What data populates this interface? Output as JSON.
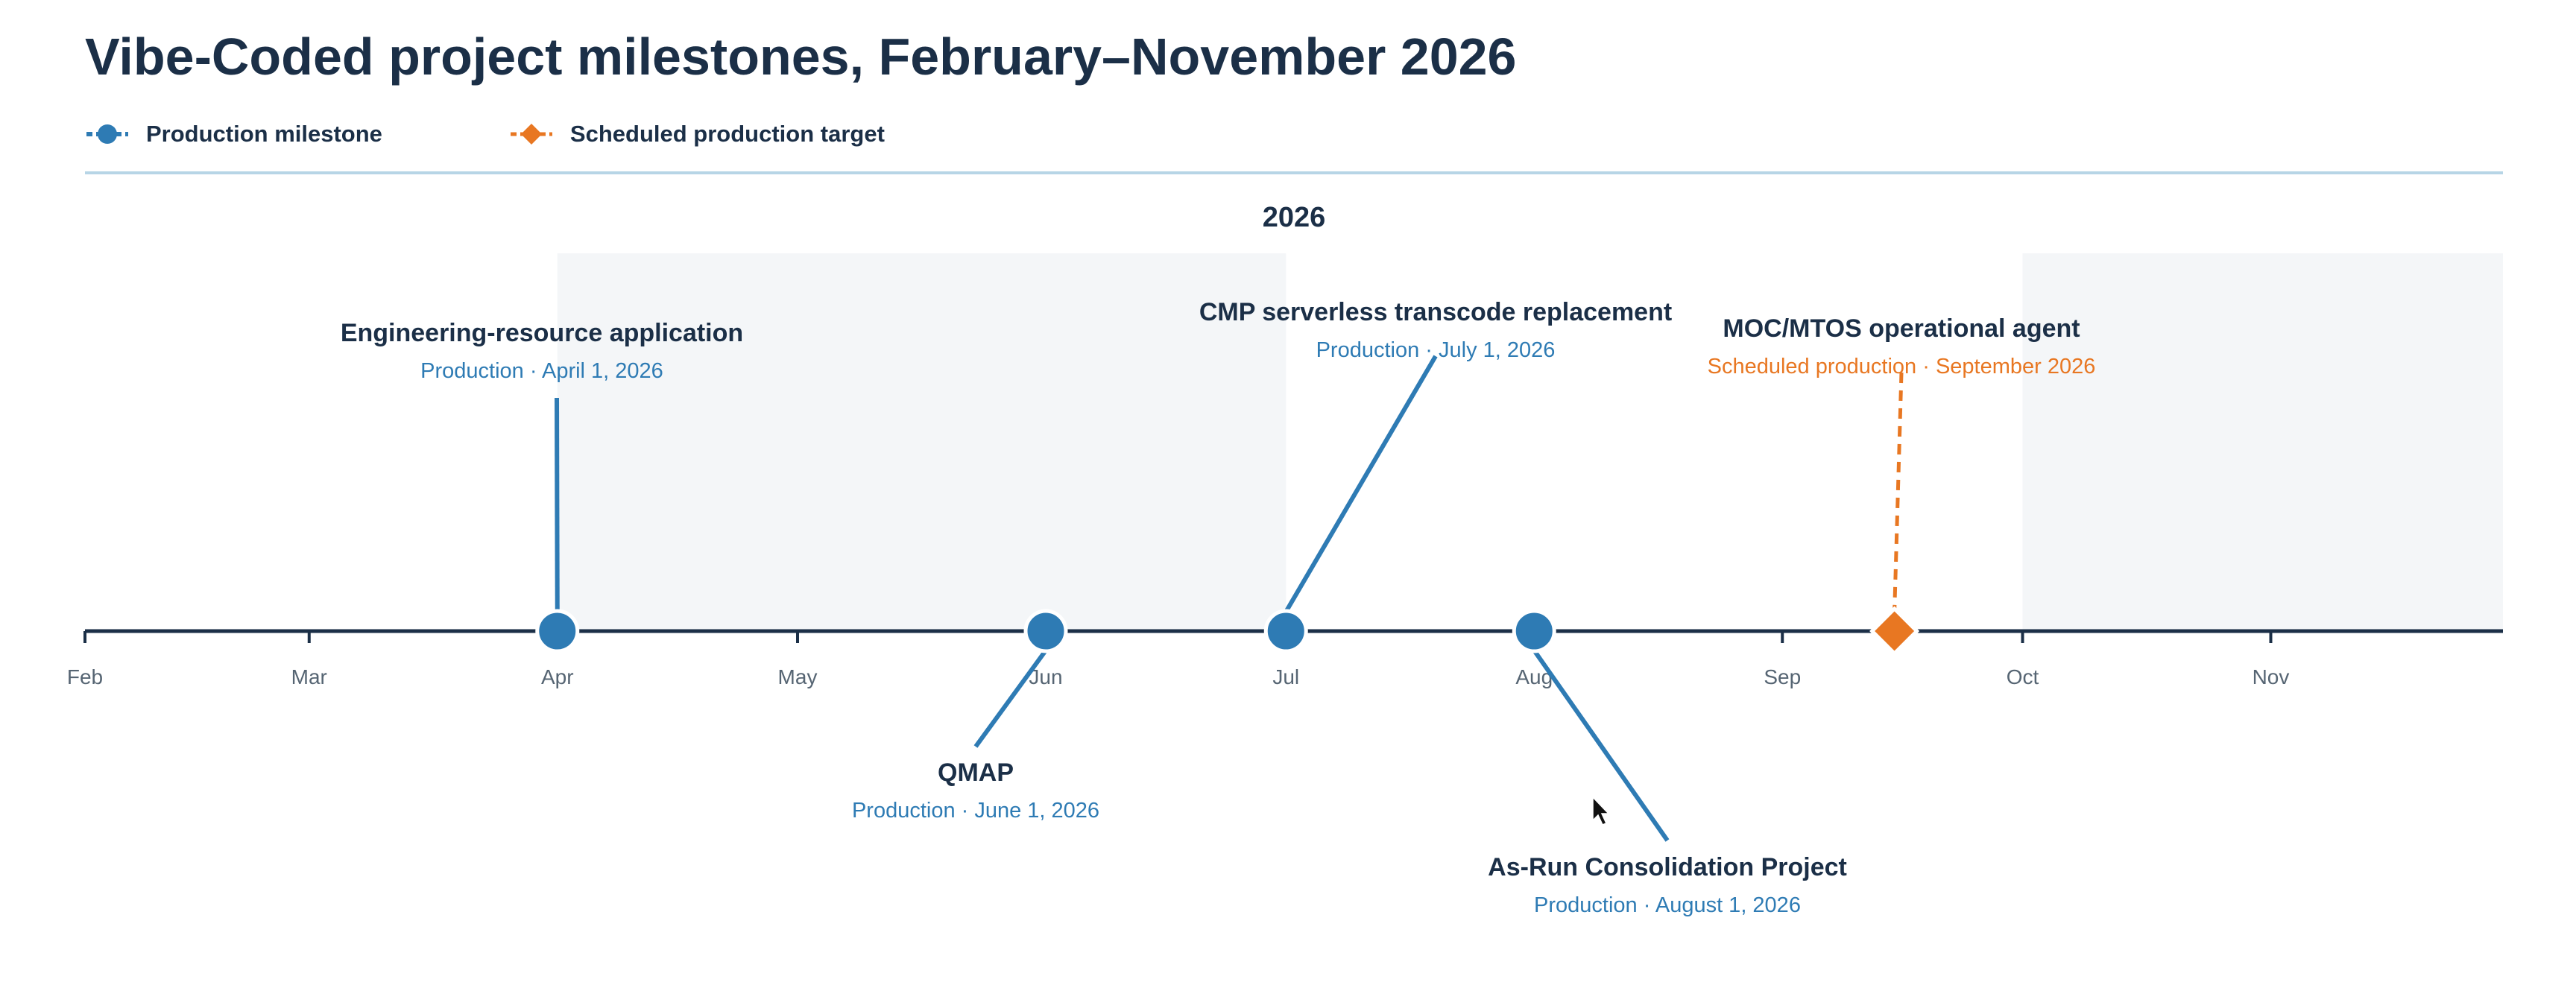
{
  "title": "Vibe-Coded project milestones, February–November 2026",
  "legend": {
    "milestone_label": "Production milestone",
    "target_label": "Scheduled production target"
  },
  "colors": {
    "milestone": "#2e7bb4",
    "target": "#e87722",
    "axis": "#1b2f47",
    "title": "#1b2f47",
    "band": "#f4f6f8",
    "tick_label": "#566573"
  },
  "chart_data": {
    "type": "timeline",
    "title": "Vibe-Coded project milestones, February–November 2026",
    "year_label": "2026",
    "x_range": [
      "2026-02-01",
      "2026-11-30"
    ],
    "tick_labels": [
      "Feb",
      "Mar",
      "Apr",
      "May",
      "Jun",
      "Jul",
      "Aug",
      "Sep",
      "Oct",
      "Nov"
    ],
    "shaded_periods": [
      [
        "2026-04-01",
        "2026-07-01"
      ],
      [
        "2026-10-01",
        "2026-11-30"
      ]
    ],
    "series": [
      {
        "name": "Production milestone",
        "marker": "circle"
      },
      {
        "name": "Scheduled production target",
        "marker": "diamond"
      }
    ],
    "events": [
      {
        "name": "Engineering-resource application",
        "date": "2026-04-01",
        "kind": "Production milestone",
        "detail": "Production · April 1, 2026",
        "side": "above"
      },
      {
        "name": "QMAP",
        "date": "2026-06-01",
        "kind": "Production milestone",
        "detail": "Production · June 1, 2026",
        "side": "below"
      },
      {
        "name": "CMP serverless transcode replacement",
        "date": "2026-07-01",
        "kind": "Production milestone",
        "detail": "Production · July 1, 2026",
        "side": "above"
      },
      {
        "name": "As-Run Consolidation Project",
        "date": "2026-08-01",
        "kind": "Production milestone",
        "detail": "Production · August 1, 2026",
        "side": "below"
      },
      {
        "name": "MOC/MTOS operational agent",
        "date": "2026-09-15",
        "kind": "Scheduled production target",
        "detail": "Scheduled production · September 2026",
        "side": "above"
      }
    ]
  }
}
